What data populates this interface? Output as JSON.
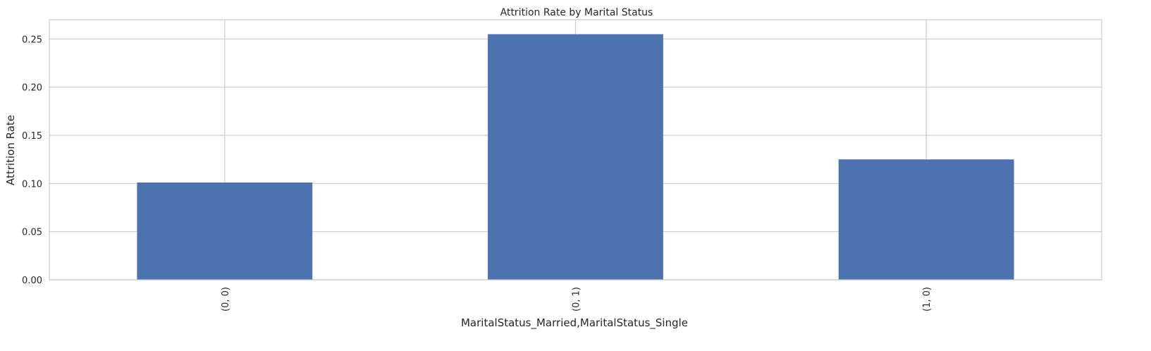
{
  "chart_data": {
    "type": "bar",
    "title": "Attrition Rate by Marital Status",
    "xlabel": "MaritalStatus_Married,MaritalStatus_Single",
    "ylabel": "Attrition Rate",
    "categories": [
      "(0, 0)",
      "(0, 1)",
      "(1, 0)"
    ],
    "values": [
      0.101,
      0.255,
      0.125
    ],
    "ylim": [
      0,
      0.27
    ],
    "yticks": [
      "0.00",
      "0.05",
      "0.10",
      "0.15",
      "0.20",
      "0.25"
    ],
    "ytick_values": [
      0,
      0.05,
      0.1,
      0.15,
      0.2,
      0.25
    ],
    "grid": true,
    "bar_color": "#4c72b0",
    "grid_color": "#cccccc"
  }
}
